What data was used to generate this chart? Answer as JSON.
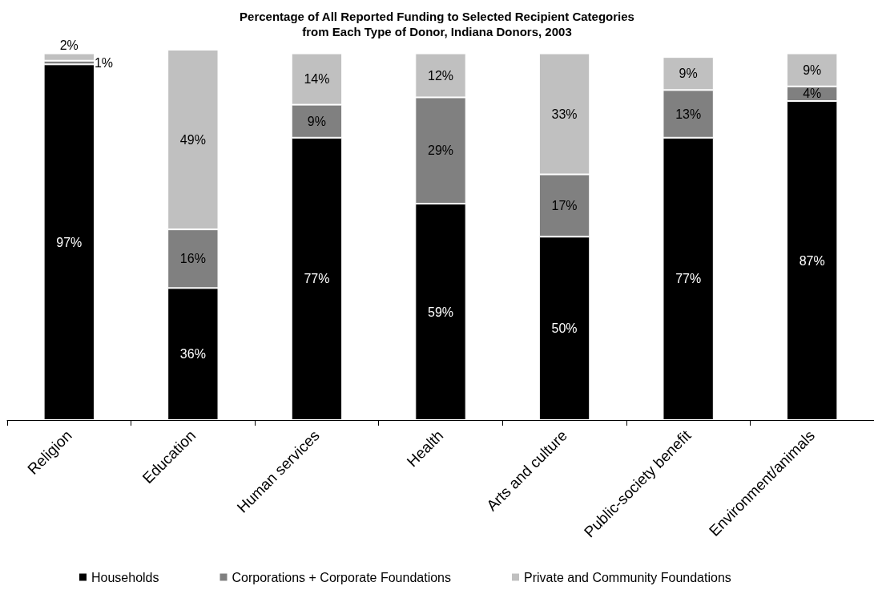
{
  "chart_data": {
    "type": "bar",
    "title": "Percentage of All Reported Funding to Selected Recipient Categories\nfrom Each Type of Donor, Indiana Donors, 2003",
    "categories": [
      "Religion",
      "Education",
      "Human services",
      "Health",
      "Arts and culture",
      "Public-society benefit",
      "Environment/animals"
    ],
    "stacked": true,
    "legend": "bottom",
    "grid": false,
    "series": [
      {
        "name": "Households",
        "color": "#000000",
        "values": [
          97,
          36,
          77,
          59,
          50,
          77,
          87
        ],
        "value_labels": [
          "97%",
          "36%",
          "77%",
          "59%",
          "50%",
          "77%",
          "87%"
        ]
      },
      {
        "name": "Corporations + Corporate Foundations",
        "color": "#808080",
        "values": [
          1,
          16,
          9,
          29,
          17,
          13,
          4
        ],
        "value_labels": [
          "1%",
          "16%",
          "9%",
          "29%",
          "17%",
          "13%",
          "4%"
        ]
      },
      {
        "name": "Private and Community Foundations",
        "color": "#c0c0c0",
        "values": [
          2,
          49,
          14,
          12,
          33,
          9,
          9
        ],
        "value_labels": [
          "2%",
          "49%",
          "14%",
          "12%",
          "33%",
          "9%",
          "9%"
        ]
      }
    ]
  }
}
